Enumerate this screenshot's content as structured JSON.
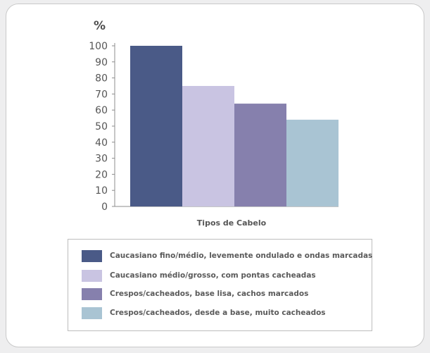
{
  "chart_data": {
    "type": "bar",
    "ylabel": "%",
    "xlabel": "Tipos de Cabelo",
    "ylim": [
      0,
      100
    ],
    "yticks": [
      0,
      10,
      20,
      30,
      40,
      50,
      60,
      70,
      80,
      90,
      100
    ],
    "grid": false,
    "legend_position": "bottom",
    "series": [
      {
        "name": "Caucasiano fino/médio, levemente ondulado e ondas marcadas",
        "value": 100,
        "color": "#4a5a87"
      },
      {
        "name": "Caucasiano médio/grosso, com pontas cacheadas",
        "value": 75,
        "color": "#c9c4e2"
      },
      {
        "name": "Crespos/cacheados, base lisa, cachos marcados",
        "value": 64,
        "color": "#8680ad"
      },
      {
        "name": "Crespos/cacheados, desde a base, muito cacheados",
        "value": 54,
        "color": "#a9c4d3"
      }
    ]
  }
}
